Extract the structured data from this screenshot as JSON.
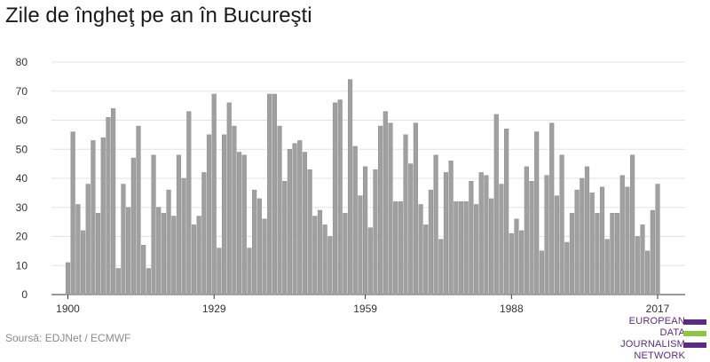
{
  "title": "Zile de îngheţ pe an în Bucureşti",
  "source": "Soursă: EDJNet / ECMWF",
  "logo": {
    "line1": "EUROPEAN",
    "line2": "DATA JOURNALISM",
    "line3": "NETWORK",
    "colors": [
      "#5b2a86",
      "#8dc63f",
      "#5b2a86"
    ]
  },
  "chart_data": {
    "type": "bar",
    "title": "Zile de îngheţ pe an în Bucureşti",
    "xlabel": "",
    "ylabel": "",
    "x_start": 1900,
    "x_end": 2017,
    "xticks": [
      1900,
      1929,
      1959,
      1988,
      2017
    ],
    "yticks": [
      0,
      10,
      20,
      30,
      40,
      50,
      60,
      70,
      80
    ],
    "ylim": [
      0,
      80
    ],
    "grid": "horizontal",
    "bar_color": "#a0a0a0",
    "values": [
      11,
      56,
      31,
      22,
      38,
      53,
      28,
      54,
      61,
      64,
      9,
      38,
      30,
      47,
      58,
      17,
      9,
      48,
      30,
      28,
      36,
      27,
      48,
      40,
      63,
      24,
      27,
      42,
      55,
      69,
      16,
      55,
      66,
      58,
      49,
      48,
      16,
      36,
      33,
      26,
      69,
      69,
      58,
      39,
      50,
      52,
      53,
      49,
      43,
      27,
      29,
      24,
      20,
      66,
      67,
      28,
      74,
      51,
      34,
      44,
      23,
      43,
      58,
      63,
      59,
      32,
      32,
      55,
      45,
      59,
      31,
      24,
      36,
      48,
      19,
      42,
      46,
      32,
      32,
      32,
      39,
      31,
      42,
      41,
      33,
      62,
      38,
      57,
      21,
      26,
      22,
      44,
      39,
      56,
      15,
      41,
      59,
      34,
      48,
      18,
      28,
      36,
      40,
      44,
      35,
      28,
      37,
      19,
      28,
      28,
      41,
      37,
      48,
      20,
      24,
      15,
      29,
      38
    ]
  }
}
